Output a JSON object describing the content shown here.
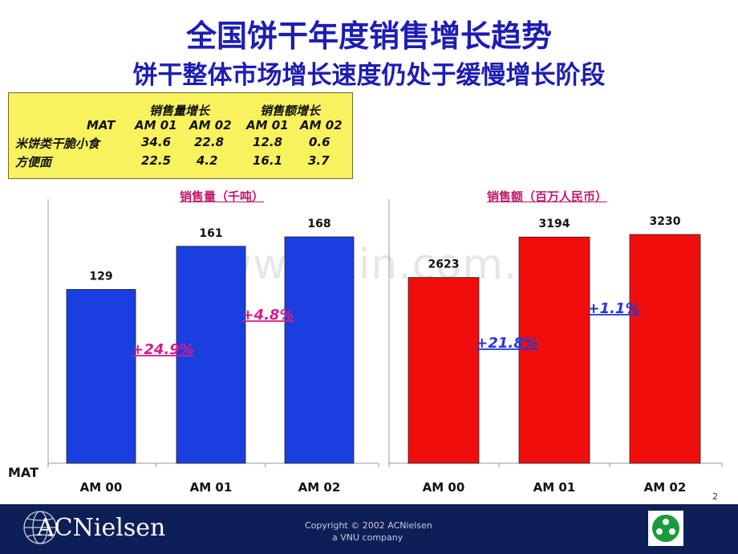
{
  "title": "全国饼干年度销售增长趋势",
  "subtitle": "饼干整体市场增长速度仍处于缓慢增长阶段",
  "summary_table": {
    "group_volume": "销售量增长",
    "group_value": "销售额增长",
    "col_mat": "MAT",
    "cols": [
      "AM 01",
      "AM 02",
      "AM 01",
      "AM 02"
    ],
    "rows": [
      {
        "label": "米饼类干脆小食",
        "values": [
          "34.6",
          "22.8",
          "12.8",
          "0.6"
        ]
      },
      {
        "label": "方便面",
        "values": [
          "22.5",
          "4.2",
          "16.1",
          "3.7"
        ]
      }
    ]
  },
  "x_axis_title": "MAT",
  "chart_data": [
    {
      "type": "bar",
      "title": "销售量（千吨）",
      "categories": [
        "AM 00",
        "AM 01",
        "AM 02"
      ],
      "values": [
        129,
        161,
        168
      ],
      "ylim": [
        0,
        196
      ],
      "color": "#1a3fe0",
      "growth_labels": [
        "+24.9%",
        "+4.8%"
      ]
    },
    {
      "type": "bar",
      "title": "销售额（百万人民币）",
      "categories": [
        "AM 00",
        "AM 01",
        "AM 02"
      ],
      "values": [
        2623,
        3194,
        3230
      ],
      "ylim": [
        0,
        3729
      ],
      "color": "#f20d0d",
      "growth_labels": [
        "+21.8%",
        "+1.1%"
      ]
    }
  ],
  "watermark": "www.zixin.com.cn",
  "page_number": "2",
  "footer": {
    "brand": "ACNielsen",
    "copyright": "Copyright © 2002 ACNielsen",
    "company": "a VNU company"
  },
  "colors": {
    "title": "#1d1db4",
    "growth_pink": "#d81b8c",
    "growth_blue": "#2438d8",
    "footer_bg": "#0d1f57"
  }
}
